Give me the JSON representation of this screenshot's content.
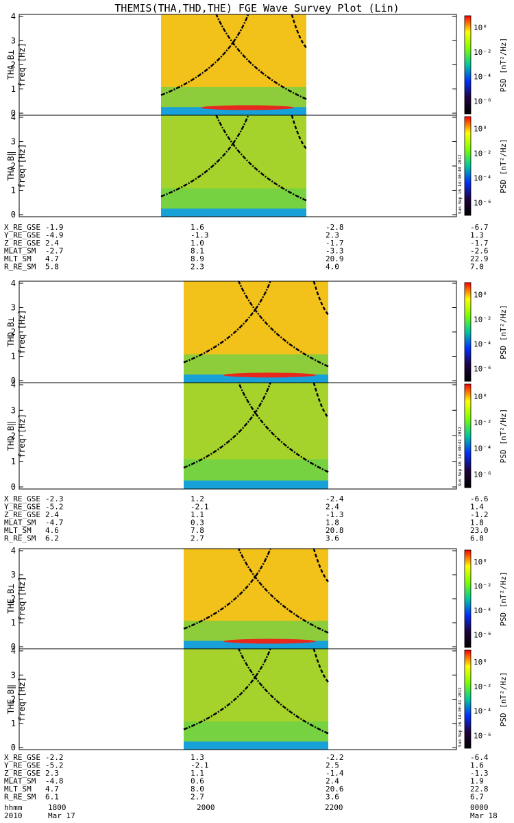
{
  "title": "THEMIS(THA,THD,THE) FGE Wave Survey Plot (Lin)",
  "stamps": [
    "Sun Sep 16 14:30:40 2012",
    "Sun Sep 16 14:30:41 2012",
    "Sun Sep 16 14:30:41 2012"
  ],
  "colorbar": {
    "label": "PSD [nT²/Hz]",
    "ticks": [
      "10⁰",
      "10⁻²",
      "10⁻⁴",
      "10⁻⁶"
    ],
    "colors": [
      "#ff0000",
      "#ffff00",
      "#7cff00",
      "#00c8a0",
      "#0030ff",
      "#200040",
      "#000000"
    ]
  },
  "time_axis": {
    "label": "hhmm",
    "ticks": [
      "1800",
      "2000",
      "2200",
      "0000"
    ],
    "year": "2010",
    "start_date": "Mar 17",
    "end_date": "Mar 18"
  },
  "chart_data": [
    {
      "type": "heatmap",
      "probe": "THA",
      "panels": [
        {
          "component": "B⊥",
          "ylabel": "freq [Hz]",
          "ylim": [
            0,
            4
          ],
          "yticks": [
            "0",
            "1",
            "2",
            "3",
            "4"
          ]
        },
        {
          "component": "B‖",
          "ylabel": "freq [Hz]",
          "ylim": [
            0,
            4
          ],
          "yticks": [
            "0",
            "1",
            "2",
            "3",
            "4"
          ]
        }
      ],
      "orbit_rows": [
        {
          "label": "X_RE_GSE",
          "values": [
            "-1.9",
            "1.6",
            "-2.8",
            "-6.7"
          ]
        },
        {
          "label": "Y_RE_GSE",
          "values": [
            "-4.9",
            "-1.3",
            "2.3",
            "1.3"
          ]
        },
        {
          "label": "Z_RE_GSE",
          "values": [
            "2.4",
            "1.0",
            "-1.7",
            "-1.7"
          ]
        },
        {
          "label": "MLAT_SM",
          "values": [
            "-2.7",
            "8.1",
            "-3.3",
            "-2.6"
          ]
        },
        {
          "label": "MLT_SM",
          "values": [
            "4.7",
            "8.9",
            "20.9",
            "22.9"
          ]
        },
        {
          "label": "R_RE_SM",
          "values": [
            "5.8",
            "2.3",
            "4.0",
            "7.0"
          ]
        }
      ]
    },
    {
      "type": "heatmap",
      "probe": "THD",
      "panels": [
        {
          "component": "B⊥",
          "ylabel": "freq [Hz]",
          "ylim": [
            0,
            4
          ],
          "yticks": [
            "0",
            "1",
            "2",
            "3",
            "4"
          ]
        },
        {
          "component": "B‖",
          "ylabel": "freq [Hz]",
          "ylim": [
            0,
            4
          ],
          "yticks": [
            "0",
            "1",
            "2",
            "3",
            "4"
          ]
        }
      ],
      "orbit_rows": [
        {
          "label": "X_RE_GSE",
          "values": [
            "-2.3",
            "1.2",
            "-2.4",
            "-6.6"
          ]
        },
        {
          "label": "Y_RE_GSE",
          "values": [
            "-5.2",
            "-2.1",
            "2.4",
            "1.4"
          ]
        },
        {
          "label": "Z_RE_GSE",
          "values": [
            "2.4",
            "1.1",
            "-1.3",
            "-1.2"
          ]
        },
        {
          "label": "MLAT_SM",
          "values": [
            "-4.7",
            "0.3",
            "1.8",
            "1.8"
          ]
        },
        {
          "label": "MLT_SM",
          "values": [
            "4.6",
            "7.8",
            "20.8",
            "23.0"
          ]
        },
        {
          "label": "R_RE_SM",
          "values": [
            "6.2",
            "2.7",
            "3.6",
            "6.8"
          ]
        }
      ]
    },
    {
      "type": "heatmap",
      "probe": "THE",
      "panels": [
        {
          "component": "B⊥",
          "ylabel": "freq [Hz]",
          "ylim": [
            0,
            4
          ],
          "yticks": [
            "0",
            "1",
            "2",
            "3",
            "4"
          ]
        },
        {
          "component": "B‖",
          "ylabel": "freq [Hz]",
          "ylim": [
            0,
            4
          ],
          "yticks": [
            "0",
            "1",
            "2",
            "3",
            "4"
          ]
        }
      ],
      "orbit_rows": [
        {
          "label": "X_RE_GSE",
          "values": [
            "-2.2",
            "1.3",
            "-2.2",
            "-6.4"
          ]
        },
        {
          "label": "Y_RE_GSE",
          "values": [
            "-5.2",
            "-2.1",
            "2.5",
            "1.6"
          ]
        },
        {
          "label": "Z_RE_GSE",
          "values": [
            "2.3",
            "1.1",
            "-1.4",
            "-1.3"
          ]
        },
        {
          "label": "MLAT_SM",
          "values": [
            "-4.8",
            "0.6",
            "2.4",
            "1.9"
          ]
        },
        {
          "label": "MLT_SM",
          "values": [
            "4.7",
            "8.0",
            "20.6",
            "22.8"
          ]
        },
        {
          "label": "R_RE_SM",
          "values": [
            "6.1",
            "2.7",
            "3.6",
            "6.7"
          ]
        }
      ]
    }
  ]
}
